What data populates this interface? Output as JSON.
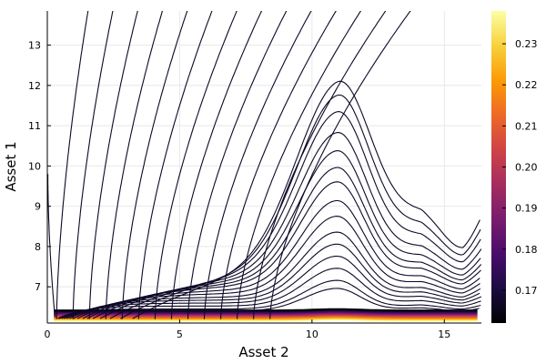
{
  "chart_data": {
    "type": "contour",
    "xlabel": "Asset 2",
    "ylabel": "Asset 1",
    "xlim": [
      0,
      16.4
    ],
    "ylim": [
      6.1,
      13.85
    ],
    "x_ticks": [
      0,
      5,
      10,
      15
    ],
    "y_ticks": [
      7,
      8,
      9,
      10,
      11,
      12,
      13
    ],
    "grid": true,
    "legend": "none",
    "colorbar": {
      "colormap": "inferno",
      "range": [
        0.162,
        0.238
      ],
      "ticks": [
        0.17,
        0.18,
        0.19,
        0.2,
        0.21,
        0.22,
        0.23
      ],
      "tick_labels": [
        "0.17",
        "0.18",
        "0.19",
        "0.20",
        "0.21",
        "0.22",
        "0.23"
      ],
      "placement": "right"
    },
    "contour_levels": {
      "count": 22,
      "low_band_floor": 6.15,
      "peak_x": 10.95,
      "right_valley_x": 15.7,
      "approx_peak_heights": [
        6.9,
        7.1,
        7.4,
        7.7,
        8.0,
        8.3,
        8.7,
        9.1,
        9.6,
        10.0,
        10.5,
        11.1,
        11.9,
        12.7,
        13.6
      ]
    },
    "low_band_colors": [
      "#fcffa4",
      "#f7d13d",
      "#fb9b06",
      "#ed6925",
      "#cf4446",
      "#a52c60",
      "#781c6d",
      "#4a0c6b",
      "#1b0c41",
      "#000004"
    ]
  },
  "colors": {
    "contour_line": "#0c0826",
    "grid": "#e8e8e8",
    "background": "#ffffff"
  }
}
